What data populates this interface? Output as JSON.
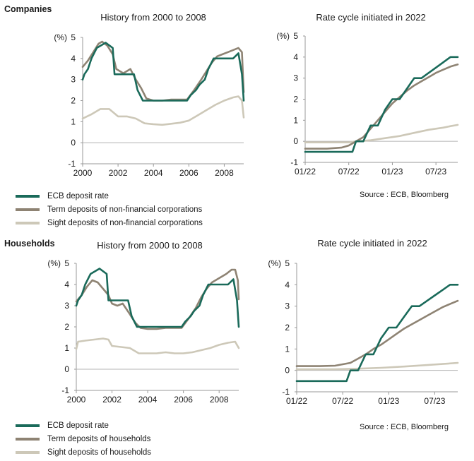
{
  "colors": {
    "ecb": "#1a6a5a",
    "term": "#8e8373",
    "sight": "#cdc8b8",
    "axis": "#999999",
    "zero": "#b4b4b4"
  },
  "sections": [
    {
      "label": "Companies",
      "source": "Source : ECB, Bloomberg",
      "legend": [
        "ECB deposit rate",
        "Term deposits of non-financial corporations",
        "Sight deposits of non-financial corporations"
      ]
    },
    {
      "label": "Households",
      "source": "Source : ECB, Bloomberg",
      "legend": [
        "ECB deposit rate",
        "Term deposits of households",
        "Sight deposits of households"
      ]
    }
  ],
  "chart_data": [
    {
      "type": "line",
      "section": "Companies",
      "title": "History from 2000 to 2008",
      "ylabel": "(%)",
      "ylim": [
        -1,
        5
      ],
      "yticks": [
        -1,
        0,
        1,
        2,
        3,
        4,
        5
      ],
      "xlim": [
        2000,
        2009.1
      ],
      "xticks": [
        2000,
        2002,
        2004,
        2006,
        2008
      ],
      "xtick_labels": [
        "2000",
        "2002",
        "2004",
        "2006",
        "2008"
      ],
      "series": [
        {
          "name": "ECB deposit rate",
          "x": [
            2000,
            2000.1,
            2000.3,
            2000.5,
            2000.8,
            2001.3,
            2001.7,
            2001.8,
            2002.9,
            2003.1,
            2003.4,
            2005.9,
            2006.1,
            2006.4,
            2006.6,
            2006.9,
            2007.1,
            2007.4,
            2008.5,
            2008.8,
            2009.0,
            2009.1
          ],
          "y": [
            3.0,
            3.25,
            3.5,
            4.0,
            4.5,
            4.75,
            4.5,
            3.25,
            3.25,
            2.5,
            2.0,
            2.0,
            2.25,
            2.5,
            2.75,
            3.0,
            3.5,
            4.0,
            4.0,
            4.25,
            3.25,
            2.0
          ]
        },
        {
          "name": "Term deposits of non-financial corporations",
          "x": [
            2000,
            2000.3,
            2000.6,
            2000.9,
            2001.1,
            2001.4,
            2001.7,
            2001.9,
            2002.3,
            2002.7,
            2003.0,
            2003.3,
            2003.6,
            2004.0,
            2004.5,
            2005.0,
            2005.5,
            2005.9,
            2006.3,
            2006.7,
            2007.0,
            2007.3,
            2007.6,
            2007.9,
            2008.2,
            2008.5,
            2008.8,
            2009.0,
            2009.1
          ],
          "y": [
            3.6,
            3.9,
            4.3,
            4.7,
            4.8,
            4.6,
            4.2,
            3.5,
            3.3,
            3.5,
            3.0,
            2.6,
            2.1,
            2.0,
            2.0,
            2.05,
            2.05,
            2.05,
            2.5,
            3.0,
            3.4,
            3.8,
            4.1,
            4.2,
            4.3,
            4.4,
            4.5,
            4.3,
            2.4
          ]
        },
        {
          "name": "Sight deposits of non-financial corporations",
          "x": [
            2000,
            2000.5,
            2001.0,
            2001.5,
            2002.0,
            2002.5,
            2003.0,
            2003.5,
            2004.0,
            2004.5,
            2005.0,
            2005.5,
            2006.0,
            2006.5,
            2007.0,
            2007.5,
            2008.0,
            2008.5,
            2008.8,
            2009.0,
            2009.1
          ],
          "y": [
            1.15,
            1.35,
            1.6,
            1.6,
            1.25,
            1.25,
            1.15,
            0.92,
            0.88,
            0.85,
            0.9,
            0.95,
            1.05,
            1.3,
            1.55,
            1.8,
            2.0,
            2.15,
            2.2,
            2.0,
            1.2
          ]
        }
      ]
    },
    {
      "type": "line",
      "section": "Companies",
      "title": "Rate cycle initiated in 2022",
      "ylabel": "(%)",
      "ylim": [
        -1,
        5
      ],
      "yticks": [
        -1,
        0,
        1,
        2,
        3,
        4,
        5
      ],
      "xlim": [
        0,
        21
      ],
      "xticks": [
        0,
        6,
        12,
        18
      ],
      "xtick_labels": [
        "01/22",
        "07/22",
        "01/23",
        "07/23"
      ],
      "series": [
        {
          "name": "ECB deposit rate",
          "x": [
            0,
            6.5,
            7.0,
            8.0,
            9.0,
            10.0,
            11.0,
            12.0,
            13.0,
            14.0,
            15.0,
            16.0,
            17.0,
            18.0,
            19.0,
            20.0,
            21.0
          ],
          "y": [
            -0.5,
            -0.5,
            0.0,
            0.0,
            0.75,
            0.75,
            1.5,
            2.0,
            2.0,
            2.5,
            3.0,
            3.0,
            3.25,
            3.5,
            3.75,
            4.0,
            4.0
          ]
        },
        {
          "name": "Term deposits of non-financial corporations",
          "x": [
            0,
            3,
            5,
            6,
            7,
            8,
            9,
            10,
            11,
            12,
            13,
            14,
            15,
            16,
            17,
            18,
            19,
            20,
            21
          ],
          "y": [
            -0.35,
            -0.35,
            -0.3,
            -0.2,
            0.0,
            0.2,
            0.6,
            1.0,
            1.4,
            1.8,
            2.1,
            2.4,
            2.65,
            2.85,
            3.05,
            3.25,
            3.4,
            3.55,
            3.65
          ]
        },
        {
          "name": "Sight deposits of non-financial corporations",
          "x": [
            0,
            6,
            7,
            9,
            11,
            13,
            15,
            17,
            19,
            20,
            21
          ],
          "y": [
            -0.05,
            -0.05,
            0.0,
            0.05,
            0.15,
            0.25,
            0.4,
            0.55,
            0.65,
            0.72,
            0.78
          ]
        }
      ]
    },
    {
      "type": "line",
      "section": "Households",
      "title": "History from 2000 to 2008",
      "ylabel": "(%)",
      "ylim": [
        -1,
        5
      ],
      "yticks": [
        -1,
        0,
        1,
        2,
        3,
        4,
        5
      ],
      "xlim": [
        2000,
        2009.1
      ],
      "xticks": [
        2000,
        2002,
        2004,
        2006,
        2008
      ],
      "xtick_labels": [
        "2000",
        "2002",
        "2004",
        "2006",
        "2008"
      ],
      "series": [
        {
          "name": "ECB deposit rate",
          "x": [
            2000,
            2000.1,
            2000.3,
            2000.5,
            2000.8,
            2001.3,
            2001.7,
            2001.8,
            2002.9,
            2003.1,
            2003.4,
            2005.9,
            2006.1,
            2006.4,
            2006.6,
            2006.9,
            2007.1,
            2007.4,
            2008.5,
            2008.8,
            2009.0,
            2009.1
          ],
          "y": [
            3.0,
            3.25,
            3.5,
            4.0,
            4.5,
            4.75,
            4.5,
            3.25,
            3.25,
            2.5,
            2.0,
            2.0,
            2.25,
            2.5,
            2.75,
            3.0,
            3.5,
            4.0,
            4.0,
            4.25,
            3.25,
            2.0
          ]
        },
        {
          "name": "Term deposits of households",
          "x": [
            2000,
            2000.3,
            2000.6,
            2000.9,
            2001.2,
            2001.5,
            2001.8,
            2002.0,
            2002.3,
            2002.6,
            2003.0,
            2003.3,
            2003.6,
            2004.0,
            2004.5,
            2005.0,
            2005.5,
            2005.9,
            2006.3,
            2006.7,
            2007.0,
            2007.3,
            2007.6,
            2008.0,
            2008.4,
            2008.7,
            2008.9,
            2009.05,
            2009.1
          ],
          "y": [
            3.2,
            3.5,
            3.9,
            4.2,
            4.1,
            3.8,
            3.5,
            3.1,
            3.0,
            3.1,
            2.6,
            2.2,
            1.95,
            1.9,
            1.9,
            1.95,
            1.95,
            1.95,
            2.4,
            2.9,
            3.4,
            3.8,
            4.1,
            4.3,
            4.5,
            4.7,
            4.7,
            4.2,
            3.3
          ]
        },
        {
          "name": "Sight deposits of households",
          "x": [
            2000,
            2000.1,
            2000.5,
            2001.0,
            2001.5,
            2001.8,
            2002.0,
            2002.5,
            2003.0,
            2003.5,
            2004.0,
            2004.5,
            2005.0,
            2005.5,
            2006.0,
            2006.5,
            2007.0,
            2007.5,
            2008.0,
            2008.5,
            2008.9,
            2009.1
          ],
          "y": [
            0.95,
            1.3,
            1.35,
            1.4,
            1.45,
            1.4,
            1.1,
            1.05,
            1.0,
            0.75,
            0.75,
            0.75,
            0.8,
            0.75,
            0.75,
            0.8,
            0.9,
            1.0,
            1.15,
            1.25,
            1.3,
            1.0
          ]
        }
      ]
    },
    {
      "type": "line",
      "section": "Households",
      "title": "Rate cycle initiated in 2022",
      "ylabel": "(%)",
      "ylim": [
        -1,
        5
      ],
      "yticks": [
        -1,
        0,
        1,
        2,
        3,
        4,
        5
      ],
      "xlim": [
        0,
        21
      ],
      "xticks": [
        0,
        6,
        12,
        18
      ],
      "xtick_labels": [
        "01/22",
        "07/22",
        "01/23",
        "07/23"
      ],
      "series": [
        {
          "name": "ECB deposit rate",
          "x": [
            0,
            6.5,
            7.0,
            8.0,
            9.0,
            10.0,
            11.0,
            12.0,
            13.0,
            14.0,
            15.0,
            16.0,
            17.0,
            18.0,
            19.0,
            20.0,
            21.0
          ],
          "y": [
            -0.5,
            -0.5,
            0.0,
            0.0,
            0.75,
            0.75,
            1.5,
            2.0,
            2.0,
            2.5,
            3.0,
            3.0,
            3.25,
            3.5,
            3.75,
            4.0,
            4.0
          ]
        },
        {
          "name": "Term deposits of households",
          "x": [
            0,
            3,
            5,
            7,
            8,
            9,
            10,
            11,
            12,
            13,
            14,
            15,
            16,
            17,
            18,
            19,
            20,
            21
          ],
          "y": [
            0.2,
            0.2,
            0.22,
            0.35,
            0.55,
            0.75,
            1.0,
            1.2,
            1.45,
            1.7,
            1.95,
            2.15,
            2.35,
            2.55,
            2.75,
            2.95,
            3.1,
            3.25
          ]
        },
        {
          "name": "Sight deposits of households",
          "x": [
            0,
            5,
            8,
            11,
            14,
            17,
            19,
            21
          ],
          "y": [
            0.05,
            0.05,
            0.08,
            0.12,
            0.18,
            0.25,
            0.3,
            0.35
          ]
        }
      ]
    }
  ]
}
